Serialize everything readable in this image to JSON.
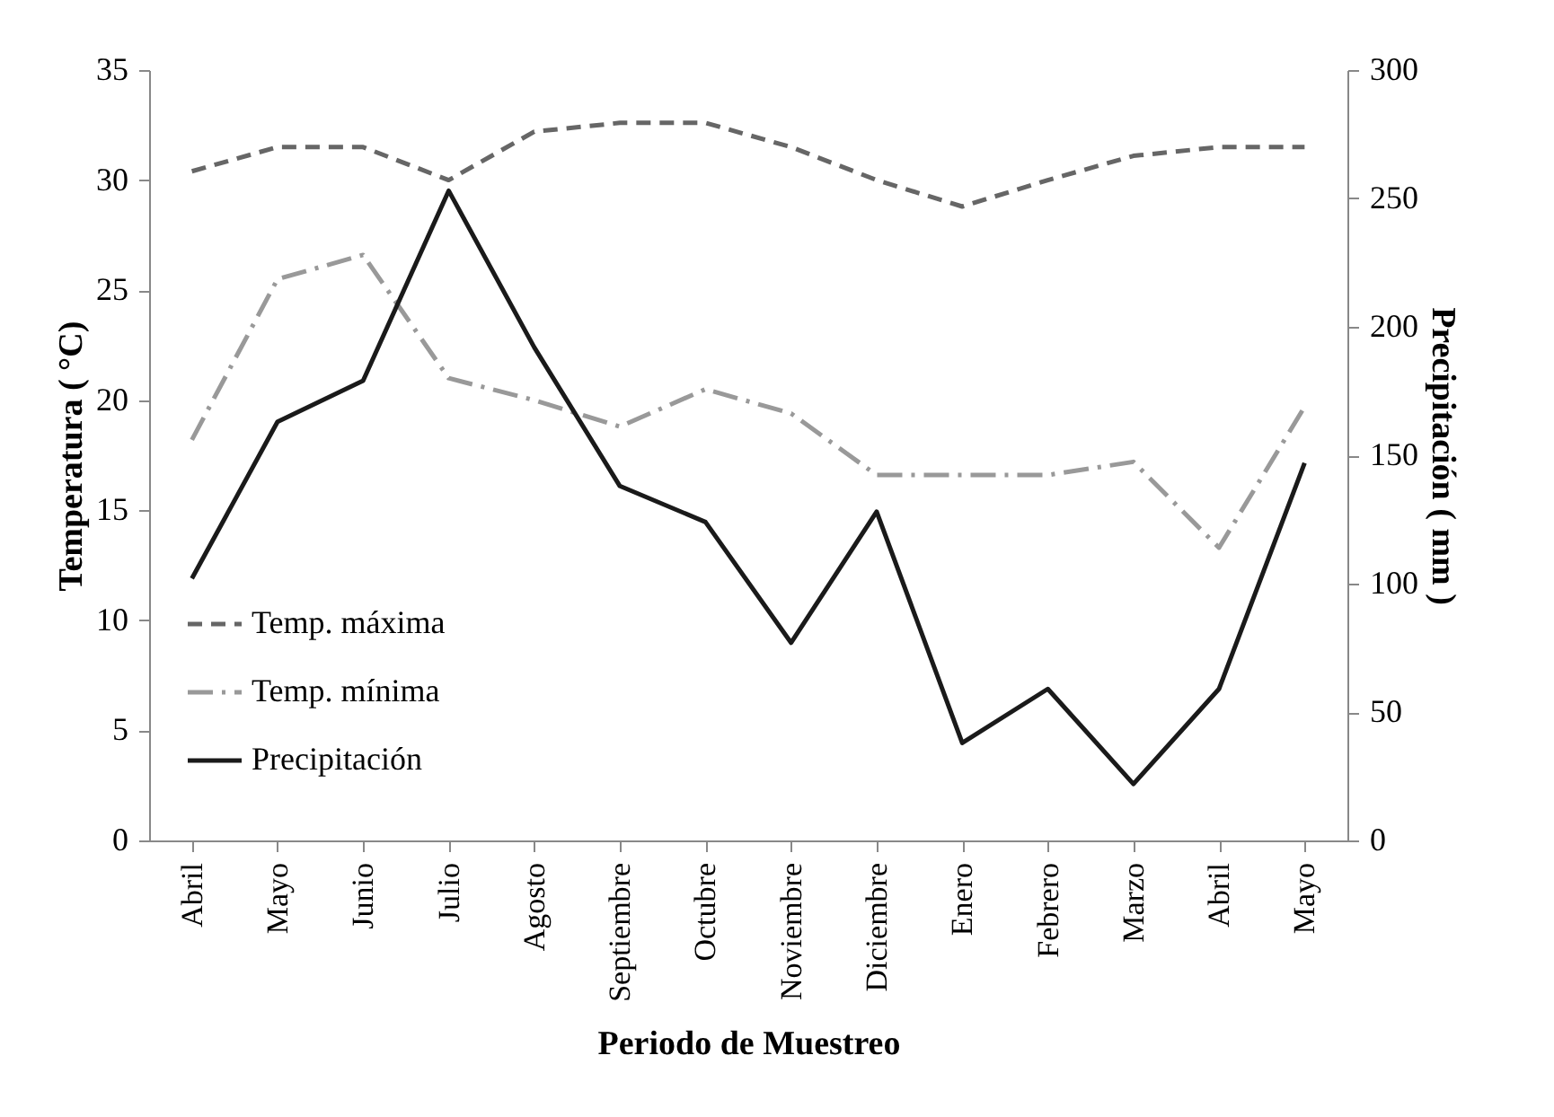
{
  "chart_data": {
    "type": "line",
    "xlabel": "Periodo de Muestreo",
    "ylabel": "Temperatura ( °C)",
    "y2label": "Precipitación ( mm )",
    "categories": [
      "Abril",
      "Mayo",
      "Junio",
      "Julio",
      "Agosto",
      "Septiembre",
      "Octubre",
      "Noviembre",
      "Diciembre",
      "Enero",
      "Febrero",
      "Marzo",
      "Abril",
      "Mayo"
    ],
    "series": [
      {
        "name": "Temp. máxima",
        "color": "#666666",
        "line_style": "dashed",
        "values": [
          30.4,
          31.5,
          31.5,
          30,
          32.2,
          32.6,
          32.6,
          31.5,
          30,
          28.8,
          30,
          31.1,
          31.5,
          31.5
        ]
      },
      {
        "name": "Temp. mínima",
        "color": "#999999",
        "line_style": "dashdot",
        "values": [
          18.2,
          25.5,
          26.6,
          21,
          20,
          18.8,
          20.5,
          19.4,
          16.6,
          16.6,
          16.6,
          17.2,
          13.3,
          19.7
        ]
      },
      {
        "name": "Precipitación",
        "color": "#1a1a1a",
        "line_style": "solid",
        "axis": "y2",
        "values": [
          102,
          163,
          179,
          253,
          192,
          138,
          124,
          77,
          128,
          38,
          59,
          22,
          59,
          147
        ]
      }
    ],
    "ylim": [
      0,
      35
    ],
    "yticks": [
      0,
      5,
      10,
      15,
      20,
      25,
      30,
      35
    ],
    "y2lim": [
      0,
      300
    ],
    "y2ticks": [
      0,
      50,
      100,
      150,
      200,
      250,
      300
    ],
    "grid": false,
    "legend": "left"
  }
}
